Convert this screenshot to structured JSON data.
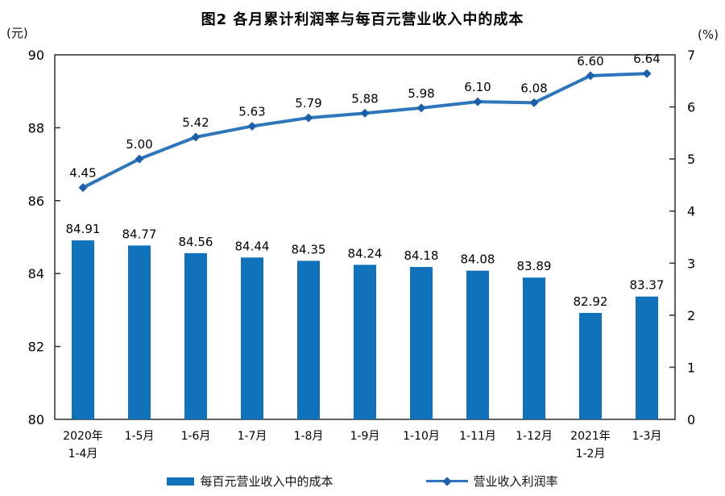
{
  "title": "图2 各月累计利润率与每百元营业收入中的成本",
  "chart_data": {
    "type": "bar",
    "subtype": "bar+line dual axis",
    "categories": [
      "2020年\n1-4月",
      "1-5月",
      "1-6月",
      "1-7月",
      "1-8月",
      "1-9月",
      "1-10月",
      "1-11月",
      "1-12月",
      "2021年\n1-2月",
      "1-3月"
    ],
    "series": [
      {
        "name": "每百元营业收入中的成本",
        "type": "bar",
        "axis": "left",
        "values": [
          84.91,
          84.77,
          84.56,
          84.44,
          84.35,
          84.24,
          84.18,
          84.08,
          83.89,
          82.92,
          83.37
        ]
      },
      {
        "name": "营业收入利润率",
        "type": "line",
        "axis": "right",
        "values": [
          4.45,
          5.0,
          5.42,
          5.63,
          5.79,
          5.88,
          5.98,
          6.1,
          6.08,
          6.6,
          6.64
        ]
      }
    ],
    "left_axis": {
      "unit": "(元)",
      "min": 80,
      "max": 90,
      "ticks": [
        90,
        88,
        86,
        84,
        82,
        80
      ]
    },
    "right_axis": {
      "unit": "(%)",
      "min": 0,
      "max": 7,
      "ticks": [
        7,
        6,
        5,
        4,
        3,
        2,
        1,
        0
      ]
    },
    "grid": false,
    "legend_position": "bottom",
    "colors": {
      "bar": "#0f72ba",
      "line": "#2e76bc",
      "marker": "#1f5fa8",
      "axis": "#3a3a3a",
      "text": "#000000"
    }
  }
}
